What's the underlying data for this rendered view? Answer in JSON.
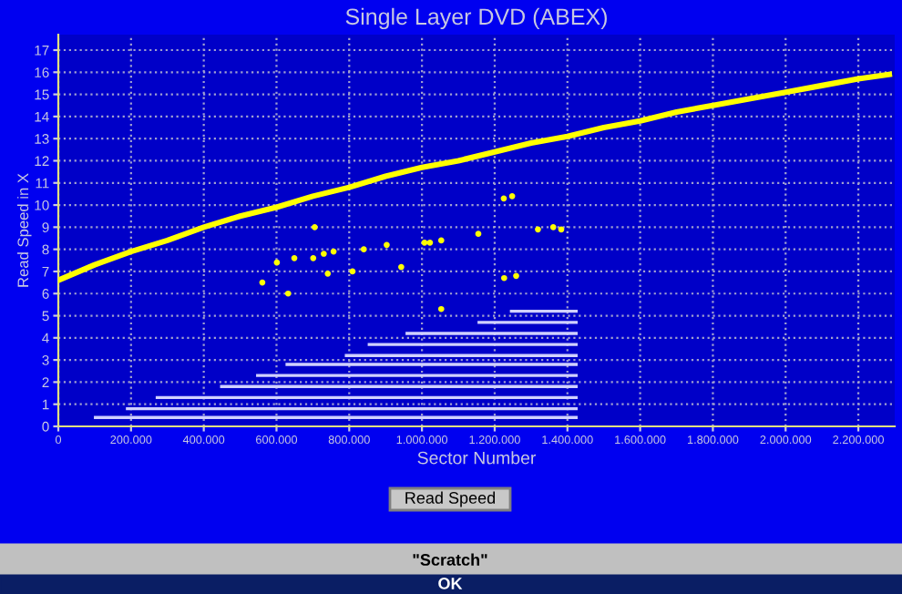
{
  "chart_data": {
    "type": "line",
    "title": "Single Layer DVD (ABEX)",
    "xlabel": "Sector Number",
    "ylabel": "Read Speed in X",
    "xlim": [
      0,
      2300000
    ],
    "ylim": [
      0,
      17.7
    ],
    "xticks": [
      0,
      {
        "value": 200000,
        "label": "200.000"
      },
      {
        "value": 400000,
        "label": "400.000"
      },
      {
        "value": 600000,
        "label": "600.000"
      },
      {
        "value": 800000,
        "label": "800.000"
      },
      {
        "value": 1000000,
        "label": "1.000.000"
      },
      {
        "value": 1200000,
        "label": "1.200.000"
      },
      {
        "value": 1400000,
        "label": "1.400.000"
      },
      {
        "value": 1600000,
        "label": "1.600.000"
      },
      {
        "value": 1800000,
        "label": "1.800.000"
      },
      {
        "value": 2000000,
        "label": "2.000.000"
      },
      {
        "value": 2200000,
        "label": "2.200.000"
      }
    ],
    "yticks": [
      0,
      1,
      2,
      3,
      4,
      5,
      6,
      7,
      8,
      9,
      10,
      11,
      12,
      13,
      14,
      15,
      16,
      17
    ],
    "grid": true,
    "legend": false,
    "marker": "none",
    "line_style": "solid",
    "series": [
      {
        "color": "#ffff00",
        "x": [
          0,
          100000,
          200000,
          300000,
          400000,
          500000,
          600000,
          700000,
          800000,
          900000,
          1000000,
          1100000,
          1200000,
          1300000,
          1400000,
          1500000,
          1600000,
          1700000,
          1800000,
          1900000,
          2000000,
          2100000,
          2200000,
          2285000
        ],
        "values": [
          6.6,
          7.3,
          7.9,
          8.4,
          9.0,
          9.5,
          9.9,
          10.4,
          10.8,
          11.3,
          11.7,
          12.0,
          12.4,
          12.8,
          13.1,
          13.5,
          13.8,
          14.2,
          14.5,
          14.8,
          15.1,
          15.4,
          15.7,
          15.9
        ]
      },
      {
        "type": "scatter",
        "color": "#ffff00",
        "x": [
          561000,
          601000,
          632000,
          649000,
          701000,
          705000,
          730000,
          741000,
          757000,
          809000,
          840000,
          903000,
          943000,
          1007000,
          1022000,
          1053000,
          1053000,
          1155000,
          1225000,
          1226000,
          1248000,
          1259000,
          1319000,
          1361000,
          1383000
        ],
        "values": [
          6.5,
          7.4,
          6.0,
          7.6,
          7.6,
          9.0,
          7.8,
          6.9,
          7.9,
          7.0,
          8.0,
          8.2,
          7.2,
          8.3,
          8.3,
          8.4,
          5.3,
          8.7,
          10.3,
          6.7,
          10.4,
          6.8,
          8.9,
          9.0,
          8.9
        ]
      },
      {
        "type": "line",
        "color": "#d0d0ff",
        "x": [
          102000,
          1424000
        ],
        "values": [
          0.4,
          0.4
        ]
      },
      {
        "type": "line",
        "color": "#d0d0ff",
        "x": [
          190000,
          1424000
        ],
        "values": [
          0.8,
          0.8
        ]
      },
      {
        "type": "line",
        "color": "#d0d0ff",
        "x": [
          272000,
          1424000
        ],
        "values": [
          1.3,
          1.3
        ]
      },
      {
        "type": "line",
        "color": "#d0d0ff",
        "x": [
          449000,
          1424000
        ],
        "values": [
          1.8,
          1.8
        ]
      },
      {
        "type": "line",
        "color": "#d0d0ff",
        "x": [
          548000,
          1424000
        ],
        "values": [
          2.3,
          2.3
        ]
      },
      {
        "type": "line",
        "color": "#d0d0ff",
        "x": [
          629000,
          1424000
        ],
        "values": [
          2.8,
          2.8
        ]
      },
      {
        "type": "line",
        "color": "#d0d0ff",
        "x": [
          792000,
          1424000
        ],
        "values": [
          3.2,
          3.2
        ]
      },
      {
        "type": "line",
        "color": "#d0d0ff",
        "x": [
          855000,
          1424000
        ],
        "values": [
          3.7,
          3.7
        ]
      },
      {
        "type": "line",
        "color": "#d0d0ff",
        "x": [
          959000,
          1424000
        ],
        "values": [
          4.2,
          4.2
        ]
      },
      {
        "type": "line",
        "color": "#d0d0ff",
        "x": [
          1157000,
          1424000
        ],
        "values": [
          4.7,
          4.7
        ]
      },
      {
        "type": "line",
        "color": "#d0d0ff",
        "x": [
          1246000,
          1424000
        ],
        "values": [
          5.2,
          5.2
        ]
      }
    ],
    "annotations": [
      "Read Speed",
      "\"Scratch\"",
      "OK"
    ]
  }
}
